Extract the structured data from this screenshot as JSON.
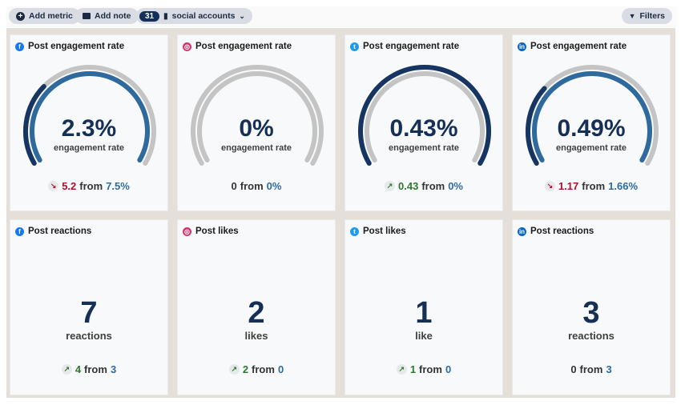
{
  "toolbar": {
    "add_metric": "Add metric",
    "add_note": "Add note",
    "accounts_count": "31",
    "accounts_label": "social accounts",
    "filters": "Filters"
  },
  "colors": {
    "current": "#163563",
    "previous": "#2f6a9e",
    "track": "#c4c4c4",
    "up": "#2c7a2c",
    "down": "#b0102a",
    "facebook": "#1877f2",
    "instagram": "#d6336c",
    "twitter": "#1d9bf0",
    "linkedin": "#0a66c2"
  },
  "gauges": [
    {
      "network": "facebook",
      "title": "Post engagement rate",
      "value": "2.3%",
      "unit": "engagement rate",
      "change": "5.2",
      "direction": "down",
      "from_label": "from",
      "previous": "7.5%",
      "current_fraction": 0.31,
      "previous_fraction": 1
    },
    {
      "network": "instagram",
      "title": "Post engagement rate",
      "value": "0%",
      "unit": "engagement rate",
      "change": "0",
      "direction": "none",
      "from_label": "from",
      "previous": "0%",
      "current_fraction": 0,
      "previous_fraction": 0
    },
    {
      "network": "twitter",
      "title": "Post engagement rate",
      "value": "0.43%",
      "unit": "engagement rate",
      "change": "0.43",
      "direction": "up",
      "from_label": "from",
      "previous": "0%",
      "current_fraction": 1,
      "previous_fraction": 0
    },
    {
      "network": "linkedin",
      "title": "Post engagement rate",
      "value": "0.49%",
      "unit": "engagement rate",
      "change": "1.17",
      "direction": "down",
      "from_label": "from",
      "previous": "1.66%",
      "current_fraction": 0.3,
      "previous_fraction": 1
    }
  ],
  "counts": [
    {
      "network": "facebook",
      "title": "Post reactions",
      "value": "7",
      "unit": "reactions",
      "change": "4",
      "direction": "up",
      "from_label": "from",
      "previous": "3"
    },
    {
      "network": "instagram",
      "title": "Post likes",
      "value": "2",
      "unit": "likes",
      "change": "2",
      "direction": "up",
      "from_label": "from",
      "previous": "0"
    },
    {
      "network": "twitter",
      "title": "Post likes",
      "value": "1",
      "unit": "like",
      "change": "1",
      "direction": "up",
      "from_label": "from",
      "previous": "0"
    },
    {
      "network": "linkedin",
      "title": "Post reactions",
      "value": "3",
      "unit": "reactions",
      "change": "0",
      "direction": "none",
      "from_label": "from",
      "previous": "3"
    }
  ]
}
